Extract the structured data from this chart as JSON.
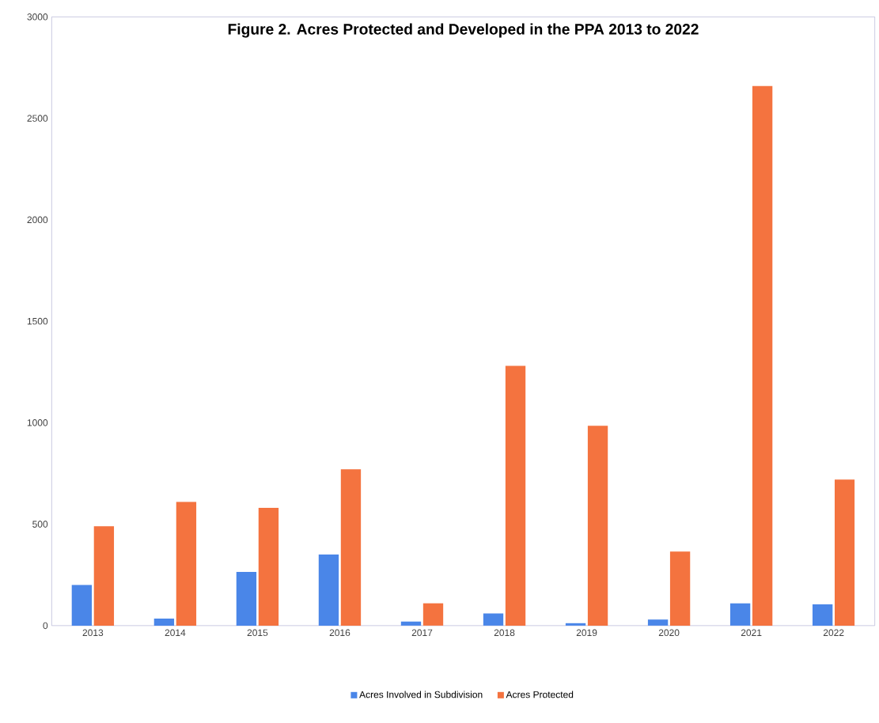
{
  "chart_data": {
    "type": "bar",
    "title": "Figure 2. Acres Protected and Developed in the PPA 2013 to 2022",
    "categories": [
      "2013",
      "2014",
      "2015",
      "2016",
      "2017",
      "2018",
      "2019",
      "2020",
      "2021",
      "2022"
    ],
    "series": [
      {
        "name": "Acres Involved in Subdivision",
        "color": "#4a86e8",
        "values": [
          200,
          35,
          265,
          350,
          20,
          60,
          12,
          30,
          110,
          105
        ]
      },
      {
        "name": "Acres Protected",
        "color": "#f4733f",
        "values": [
          490,
          610,
          580,
          770,
          110,
          1280,
          985,
          365,
          2660,
          720
        ]
      }
    ],
    "ylim": [
      0,
      3000
    ],
    "yticks": [
      0,
      500,
      1000,
      1500,
      2000,
      2500,
      3000
    ],
    "grid": false,
    "legend": "bottom"
  }
}
